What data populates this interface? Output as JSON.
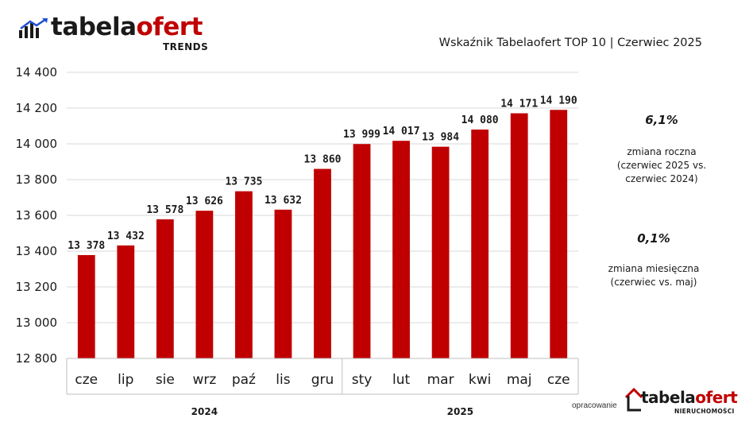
{
  "brand": {
    "name_part1": "tabela",
    "name_part2": "ofert",
    "subtitle": "TRENDS"
  },
  "title": "Wskaźnik Tabelaofert TOP 10  | Czerwiec 2025",
  "stats": [
    {
      "value": "6,1%",
      "label": "zmiana roczna\n(czerwiec 2025 vs.\nczerwiec 2024)"
    },
    {
      "value": "0,1%",
      "label": "zmiana miesięczna\n(czerwiec vs. maj)"
    }
  ],
  "footer": {
    "label": "opracowanie",
    "brand_part1": "tabela",
    "brand_part2": "ofert",
    "brand_sub": "NIERUCHOMOŚCI"
  },
  "colors": {
    "bar": "#c00000",
    "accent": "#c00000",
    "grid": "#d9d9d9"
  },
  "chart_data": {
    "type": "bar",
    "categories": [
      "cze",
      "lip",
      "sie",
      "wrz",
      "paź",
      "lis",
      "gru",
      "sty",
      "lut",
      "mar",
      "kwi",
      "maj",
      "cze"
    ],
    "values": [
      13378,
      13432,
      13578,
      13626,
      13735,
      13632,
      13860,
      13999,
      14017,
      13984,
      14080,
      14171,
      14190
    ],
    "value_labels": [
      "13 378",
      "13 432",
      "13 578",
      "13 626",
      "13 735",
      "13 632",
      "13 860",
      "13 999",
      "14 017",
      "13 984",
      "14 080",
      "14 171",
      "14 190"
    ],
    "ylim": [
      12800,
      14400
    ],
    "yticks": [
      12800,
      13000,
      13200,
      13400,
      13600,
      13800,
      14000,
      14200,
      14400
    ],
    "ytick_labels": [
      "12 800",
      "13 000",
      "13 200",
      "13 400",
      "13 600",
      "13 800",
      "14 000",
      "14 200",
      "14 400"
    ],
    "year_groups": [
      {
        "label": "2024",
        "count": 7
      },
      {
        "label": "2025",
        "count": 6
      }
    ],
    "grid": true,
    "legend": "none"
  }
}
